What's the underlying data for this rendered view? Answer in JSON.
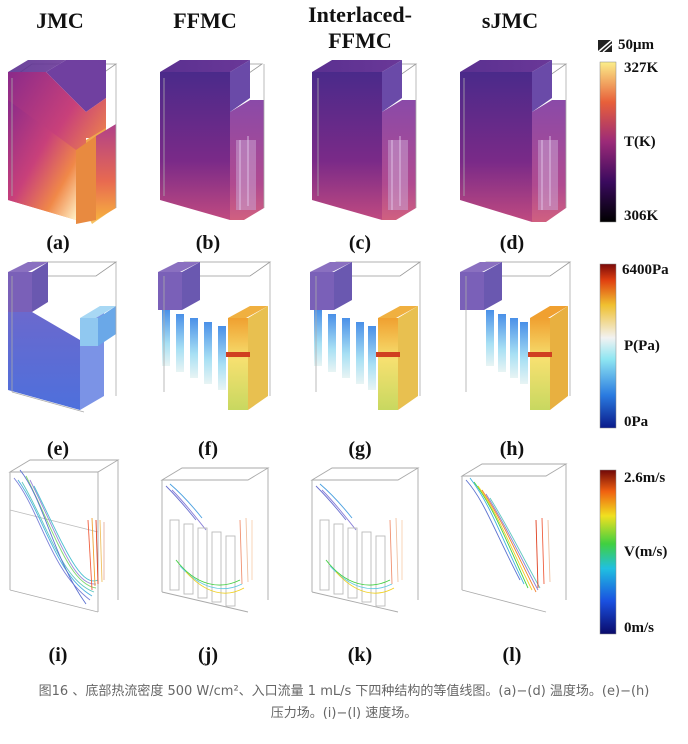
{
  "figure": {
    "columns": [
      "JMC",
      "FFMC",
      "Interlaced-\nFFMC",
      "sJMC"
    ],
    "subfigure_labels": [
      "(a)",
      "(b)",
      "(c)",
      "(d)",
      "(e)",
      "(f)",
      "(g)",
      "(h)",
      "(i)",
      "(j)",
      "(k)",
      "(l)"
    ],
    "scale_bar": "50μm",
    "colorbars": [
      {
        "name": "temperature",
        "max": "327K",
        "mid": "T(K)",
        "min": "306K"
      },
      {
        "name": "pressure",
        "max": "6400Pa",
        "mid": "P(Pa)",
        "min": "0Pa"
      },
      {
        "name": "velocity",
        "max": "2.6m/s",
        "mid": "V(m/s)",
        "min": "0m/s"
      }
    ]
  },
  "caption": {
    "line1": "图16 、底部热流密度 500 W/cm²、入口流量 1 mL/s 下四种结构的等值线图。(a)−(d) 温度场。(e)−(h)",
    "line2": "压力场。(i)−(l) 速度场。"
  }
}
